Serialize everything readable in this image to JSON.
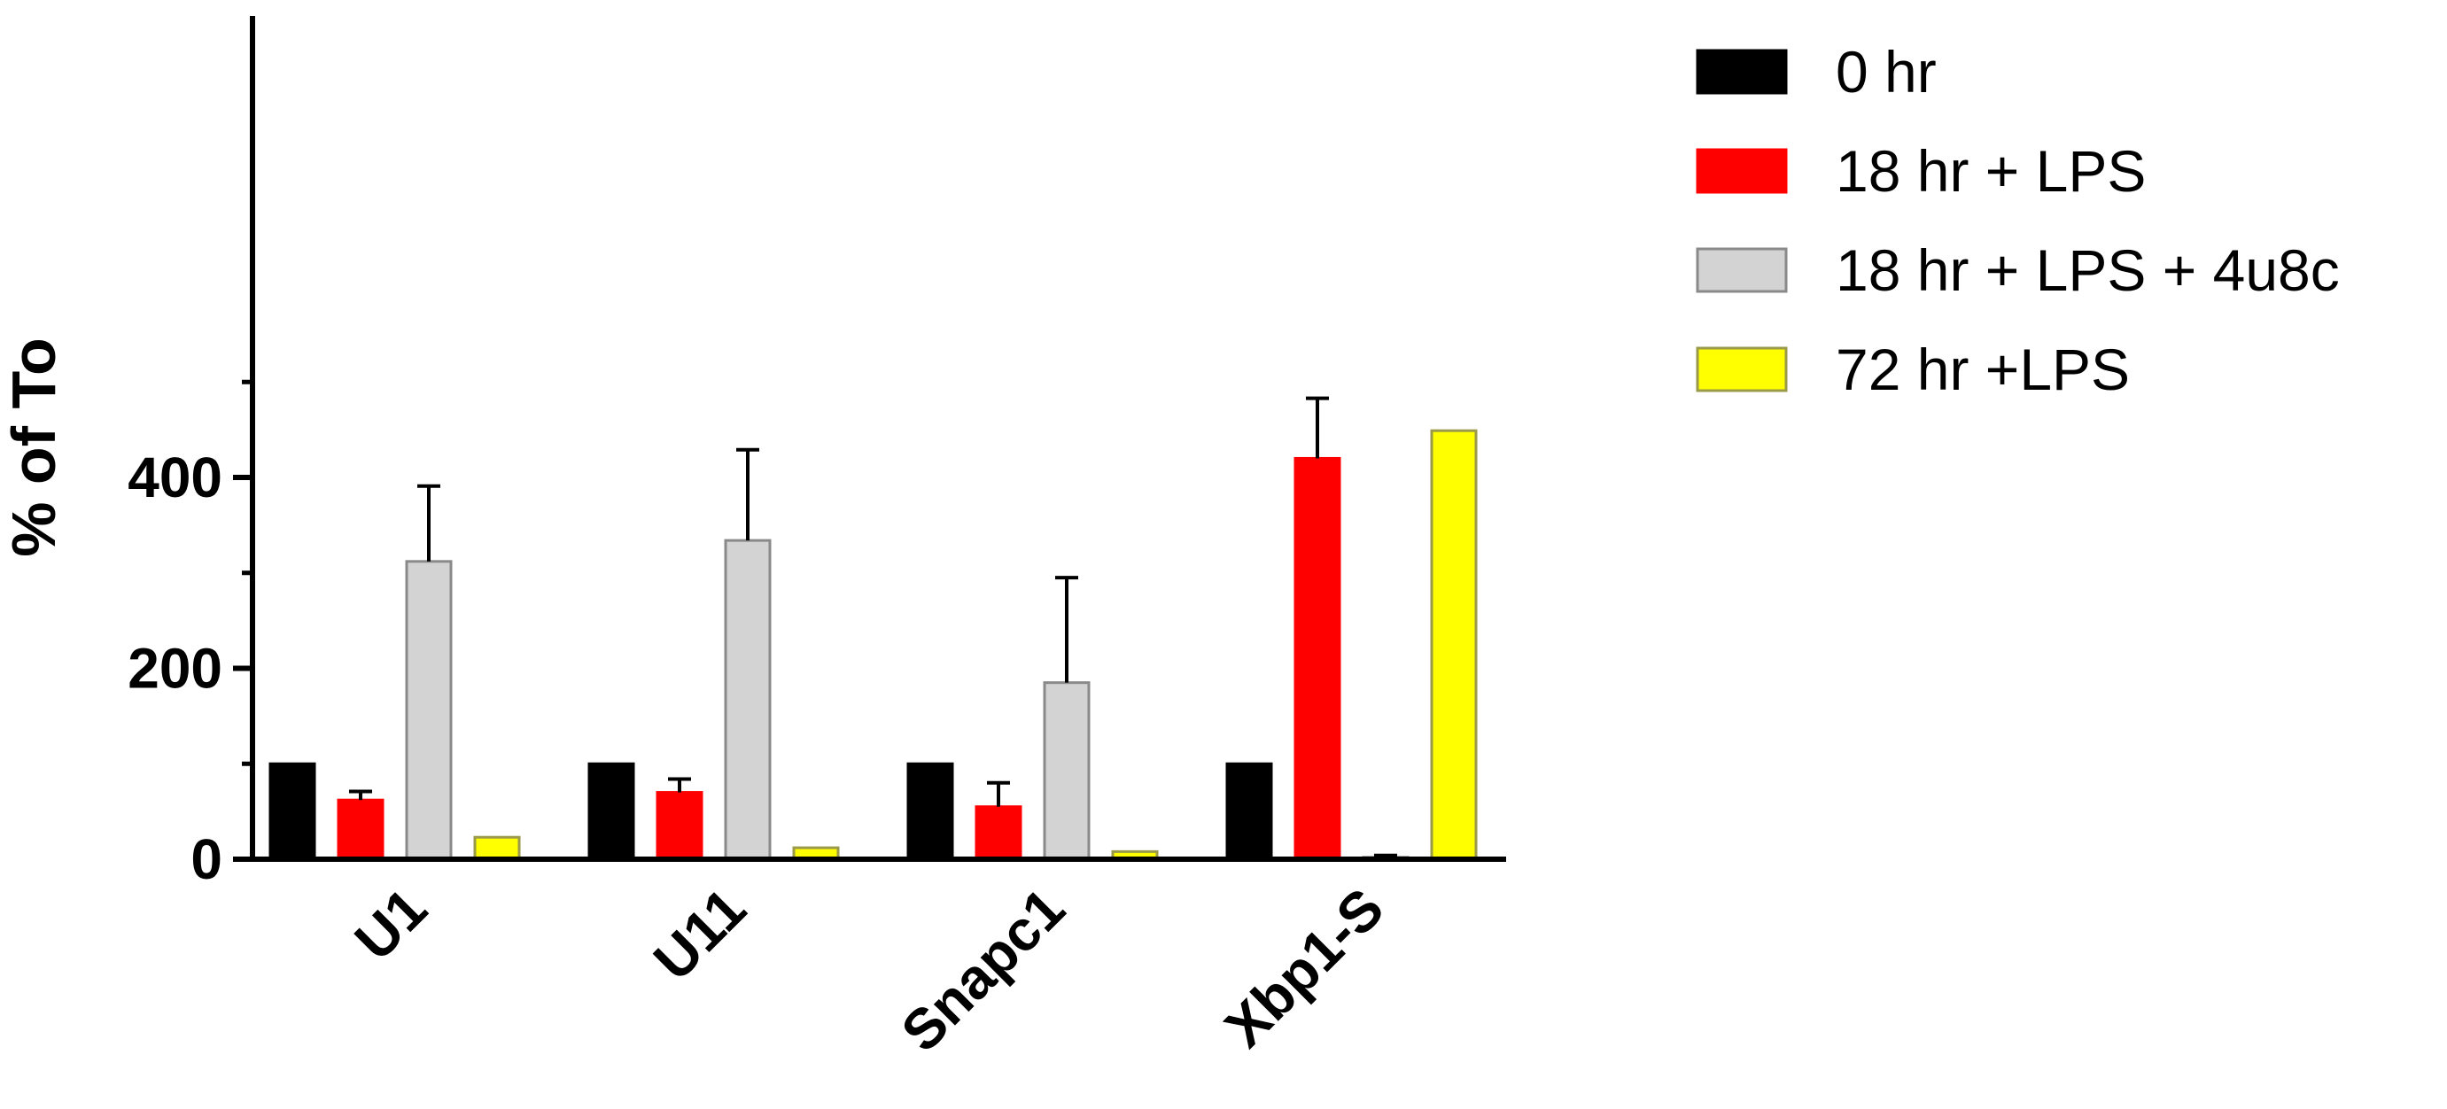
{
  "chart_data": {
    "type": "bar",
    "title": "",
    "xlabel": "",
    "ylabel": "% of To",
    "ylim": [
      0,
      500
    ],
    "yticks": [
      0,
      200,
      400
    ],
    "categories": [
      "U1",
      "U11",
      "Snapc1",
      "Xbp1-S"
    ],
    "series": [
      {
        "name": "0 hr",
        "color": "#000000",
        "stroke": "#000000",
        "values": [
          100,
          100,
          100,
          100
        ],
        "errors": [
          0,
          0,
          0,
          0
        ]
      },
      {
        "name": "18 hr + LPS",
        "color": "#ff0000",
        "stroke": "#ff0000",
        "values": [
          62,
          70,
          55,
          420
        ],
        "errors": [
          9,
          14,
          25,
          63
        ]
      },
      {
        "name": "18 hr + LPS + 4u8c",
        "color": "#d3d3d3",
        "stroke": "#8a8a8a",
        "values": [
          312,
          334,
          185,
          2
        ],
        "errors": [
          79,
          95,
          110,
          2
        ]
      },
      {
        "name": "72 hr +LPS",
        "color": "#ffff00",
        "stroke": "#9a9a4a",
        "values": [
          23,
          12,
          8,
          449
        ],
        "errors": [
          0,
          0,
          0,
          0
        ]
      }
    ],
    "legend_position": "right",
    "grid": false
  }
}
